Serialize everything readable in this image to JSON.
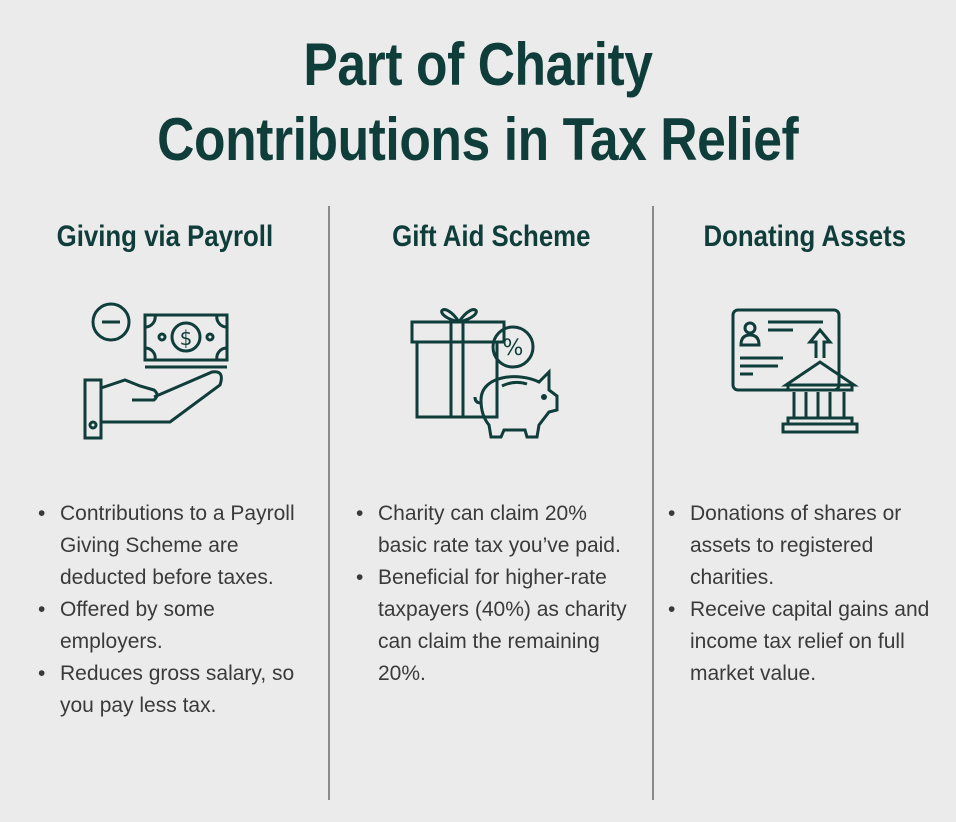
{
  "title": {
    "line1": "Part of Charity",
    "line2": "Contributions in Tax Relief"
  },
  "colors": {
    "accent": "#0f3d3a",
    "background": "#ebebeb",
    "text": "#3a3a3a"
  },
  "columns": [
    {
      "heading": "Giving via Payroll",
      "icon": "hand-holding-money-icon",
      "bullets": [
        "Contributions to a Payroll Giving Scheme are deducted before taxes.",
        "Offered by some employers.",
        "Reduces gross salary, so you pay less tax."
      ]
    },
    {
      "heading": "Gift Aid Scheme",
      "icon": "gift-piggy-bank-percent-icon",
      "bullets": [
        "Charity can claim 20% basic rate tax you’ve paid.",
        "Beneficial for higher-rate taxpayers (40%) as charity can claim the remaining 20%."
      ]
    },
    {
      "heading": "Donating Assets",
      "icon": "certificate-bank-icon",
      "bullets": [
        "Donations of shares or assets to registered charities.",
        "Receive capital gains and income tax relief on full market value."
      ]
    }
  ]
}
